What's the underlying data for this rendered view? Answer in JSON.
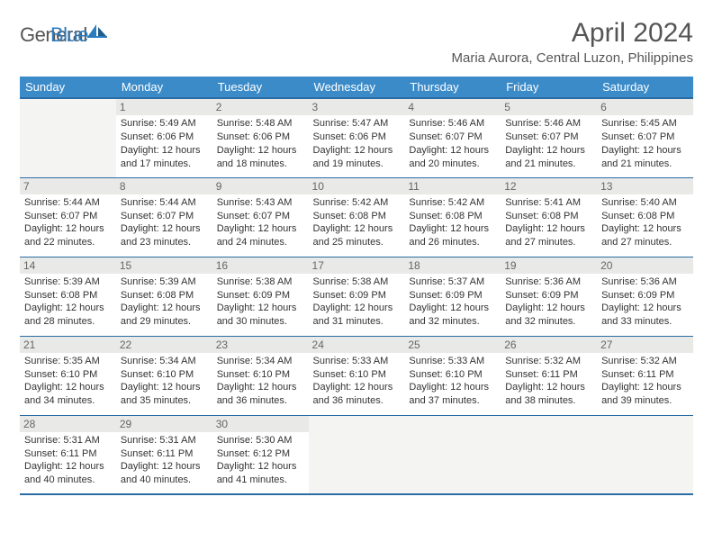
{
  "logo": {
    "word1": "General",
    "word2": "Blue"
  },
  "header": {
    "month_title": "April 2024",
    "location": "Maria Aurora, Central Luzon, Philippines"
  },
  "colors": {
    "header_bg": "#3b8bc9",
    "header_underline": "#2b6ca3",
    "daynum_bg": "#e9e9e7",
    "empty_bg": "#f4f4f2",
    "text": "#333333",
    "logo_blue": "#2b7bbf"
  },
  "day_headers": [
    "Sunday",
    "Monday",
    "Tuesday",
    "Wednesday",
    "Thursday",
    "Friday",
    "Saturday"
  ],
  "weeks": [
    [
      null,
      {
        "n": "1",
        "sr": "Sunrise: 5:49 AM",
        "ss": "Sunset: 6:06 PM",
        "d1": "Daylight: 12 hours",
        "d2": "and 17 minutes."
      },
      {
        "n": "2",
        "sr": "Sunrise: 5:48 AM",
        "ss": "Sunset: 6:06 PM",
        "d1": "Daylight: 12 hours",
        "d2": "and 18 minutes."
      },
      {
        "n": "3",
        "sr": "Sunrise: 5:47 AM",
        "ss": "Sunset: 6:06 PM",
        "d1": "Daylight: 12 hours",
        "d2": "and 19 minutes."
      },
      {
        "n": "4",
        "sr": "Sunrise: 5:46 AM",
        "ss": "Sunset: 6:07 PM",
        "d1": "Daylight: 12 hours",
        "d2": "and 20 minutes."
      },
      {
        "n": "5",
        "sr": "Sunrise: 5:46 AM",
        "ss": "Sunset: 6:07 PM",
        "d1": "Daylight: 12 hours",
        "d2": "and 21 minutes."
      },
      {
        "n": "6",
        "sr": "Sunrise: 5:45 AM",
        "ss": "Sunset: 6:07 PM",
        "d1": "Daylight: 12 hours",
        "d2": "and 21 minutes."
      }
    ],
    [
      {
        "n": "7",
        "sr": "Sunrise: 5:44 AM",
        "ss": "Sunset: 6:07 PM",
        "d1": "Daylight: 12 hours",
        "d2": "and 22 minutes."
      },
      {
        "n": "8",
        "sr": "Sunrise: 5:44 AM",
        "ss": "Sunset: 6:07 PM",
        "d1": "Daylight: 12 hours",
        "d2": "and 23 minutes."
      },
      {
        "n": "9",
        "sr": "Sunrise: 5:43 AM",
        "ss": "Sunset: 6:07 PM",
        "d1": "Daylight: 12 hours",
        "d2": "and 24 minutes."
      },
      {
        "n": "10",
        "sr": "Sunrise: 5:42 AM",
        "ss": "Sunset: 6:08 PM",
        "d1": "Daylight: 12 hours",
        "d2": "and 25 minutes."
      },
      {
        "n": "11",
        "sr": "Sunrise: 5:42 AM",
        "ss": "Sunset: 6:08 PM",
        "d1": "Daylight: 12 hours",
        "d2": "and 26 minutes."
      },
      {
        "n": "12",
        "sr": "Sunrise: 5:41 AM",
        "ss": "Sunset: 6:08 PM",
        "d1": "Daylight: 12 hours",
        "d2": "and 27 minutes."
      },
      {
        "n": "13",
        "sr": "Sunrise: 5:40 AM",
        "ss": "Sunset: 6:08 PM",
        "d1": "Daylight: 12 hours",
        "d2": "and 27 minutes."
      }
    ],
    [
      {
        "n": "14",
        "sr": "Sunrise: 5:39 AM",
        "ss": "Sunset: 6:08 PM",
        "d1": "Daylight: 12 hours",
        "d2": "and 28 minutes."
      },
      {
        "n": "15",
        "sr": "Sunrise: 5:39 AM",
        "ss": "Sunset: 6:08 PM",
        "d1": "Daylight: 12 hours",
        "d2": "and 29 minutes."
      },
      {
        "n": "16",
        "sr": "Sunrise: 5:38 AM",
        "ss": "Sunset: 6:09 PM",
        "d1": "Daylight: 12 hours",
        "d2": "and 30 minutes."
      },
      {
        "n": "17",
        "sr": "Sunrise: 5:38 AM",
        "ss": "Sunset: 6:09 PM",
        "d1": "Daylight: 12 hours",
        "d2": "and 31 minutes."
      },
      {
        "n": "18",
        "sr": "Sunrise: 5:37 AM",
        "ss": "Sunset: 6:09 PM",
        "d1": "Daylight: 12 hours",
        "d2": "and 32 minutes."
      },
      {
        "n": "19",
        "sr": "Sunrise: 5:36 AM",
        "ss": "Sunset: 6:09 PM",
        "d1": "Daylight: 12 hours",
        "d2": "and 32 minutes."
      },
      {
        "n": "20",
        "sr": "Sunrise: 5:36 AM",
        "ss": "Sunset: 6:09 PM",
        "d1": "Daylight: 12 hours",
        "d2": "and 33 minutes."
      }
    ],
    [
      {
        "n": "21",
        "sr": "Sunrise: 5:35 AM",
        "ss": "Sunset: 6:10 PM",
        "d1": "Daylight: 12 hours",
        "d2": "and 34 minutes."
      },
      {
        "n": "22",
        "sr": "Sunrise: 5:34 AM",
        "ss": "Sunset: 6:10 PM",
        "d1": "Daylight: 12 hours",
        "d2": "and 35 minutes."
      },
      {
        "n": "23",
        "sr": "Sunrise: 5:34 AM",
        "ss": "Sunset: 6:10 PM",
        "d1": "Daylight: 12 hours",
        "d2": "and 36 minutes."
      },
      {
        "n": "24",
        "sr": "Sunrise: 5:33 AM",
        "ss": "Sunset: 6:10 PM",
        "d1": "Daylight: 12 hours",
        "d2": "and 36 minutes."
      },
      {
        "n": "25",
        "sr": "Sunrise: 5:33 AM",
        "ss": "Sunset: 6:10 PM",
        "d1": "Daylight: 12 hours",
        "d2": "and 37 minutes."
      },
      {
        "n": "26",
        "sr": "Sunrise: 5:32 AM",
        "ss": "Sunset: 6:11 PM",
        "d1": "Daylight: 12 hours",
        "d2": "and 38 minutes."
      },
      {
        "n": "27",
        "sr": "Sunrise: 5:32 AM",
        "ss": "Sunset: 6:11 PM",
        "d1": "Daylight: 12 hours",
        "d2": "and 39 minutes."
      }
    ],
    [
      {
        "n": "28",
        "sr": "Sunrise: 5:31 AM",
        "ss": "Sunset: 6:11 PM",
        "d1": "Daylight: 12 hours",
        "d2": "and 40 minutes."
      },
      {
        "n": "29",
        "sr": "Sunrise: 5:31 AM",
        "ss": "Sunset: 6:11 PM",
        "d1": "Daylight: 12 hours",
        "d2": "and 40 minutes."
      },
      {
        "n": "30",
        "sr": "Sunrise: 5:30 AM",
        "ss": "Sunset: 6:12 PM",
        "d1": "Daylight: 12 hours",
        "d2": "and 41 minutes."
      },
      null,
      null,
      null,
      null
    ]
  ]
}
